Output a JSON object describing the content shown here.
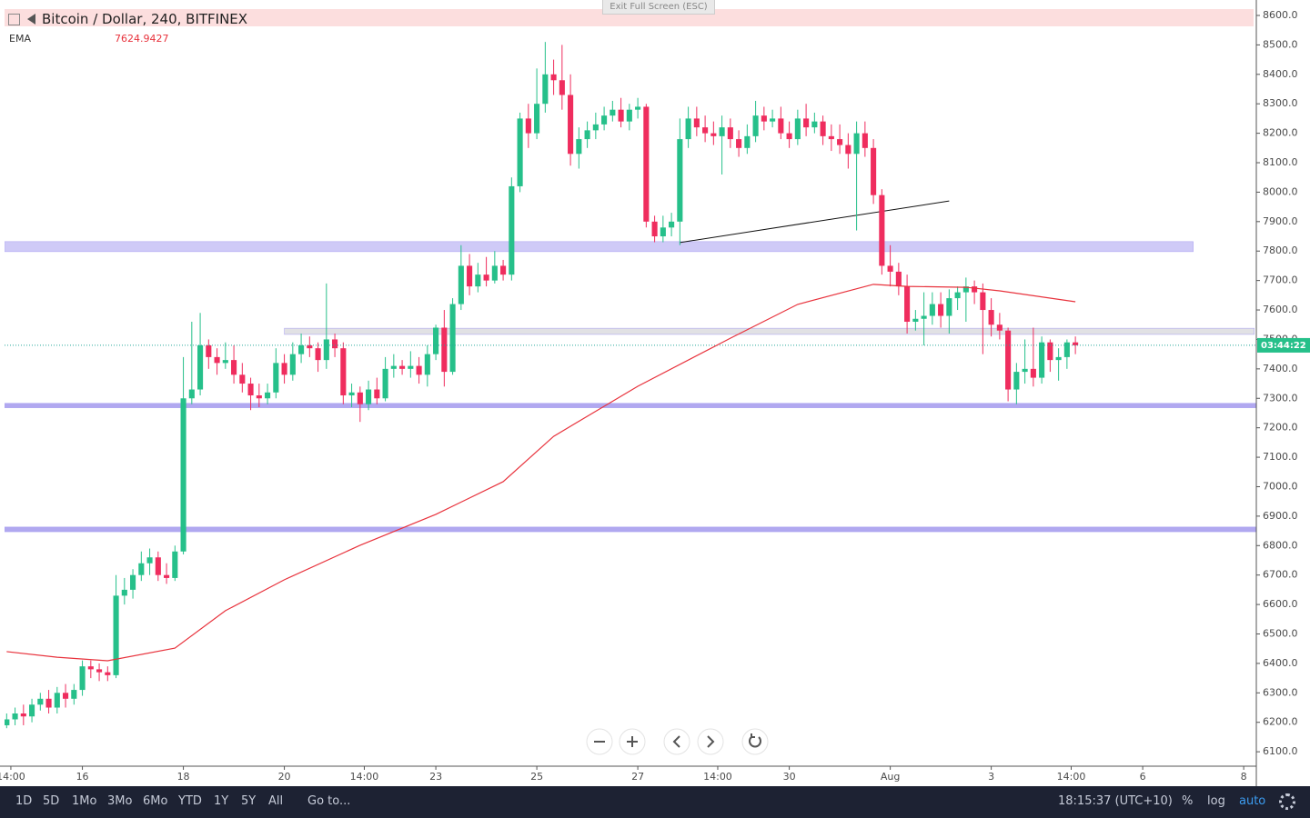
{
  "header": {
    "symbol": "Bitcoin / Dollar, 240, BITFINEX",
    "exit_button": "Exit Full Screen (ESC)"
  },
  "chart_data": {
    "type": "candlestick",
    "xlim": [
      347,
      942
    ],
    "ylim": [
      6051,
      8637
    ],
    "xticks": [
      {
        "value": 350,
        "label": "14:00"
      },
      {
        "value": 384,
        "label": "16"
      },
      {
        "value": 432,
        "label": "18"
      },
      {
        "value": 480,
        "label": "20"
      },
      {
        "value": 518,
        "label": "14:00"
      },
      {
        "value": 552,
        "label": "23"
      },
      {
        "value": 600,
        "label": "25"
      },
      {
        "value": 648,
        "label": "27"
      },
      {
        "value": 686,
        "label": "14:00"
      },
      {
        "value": 720,
        "label": "30"
      },
      {
        "value": 768,
        "label": "Aug"
      },
      {
        "value": 816,
        "label": "3"
      },
      {
        "value": 854,
        "label": "14:00"
      },
      {
        "value": 888,
        "label": "6"
      },
      {
        "value": 936,
        "label": "8"
      }
    ],
    "yticks": [
      {
        "value": 6100,
        "label": "6100.0"
      },
      {
        "value": 6200,
        "label": "6200.0"
      },
      {
        "value": 6300,
        "label": "6300.0"
      },
      {
        "value": 6400,
        "label": "6400.0"
      },
      {
        "value": 6500,
        "label": "6500.0"
      },
      {
        "value": 6600,
        "label": "6600.0"
      },
      {
        "value": 6700,
        "label": "6700.0"
      },
      {
        "value": 6800,
        "label": "6800.0"
      },
      {
        "value": 6900,
        "label": "6900.0"
      },
      {
        "value": 7000,
        "label": "7000.0"
      },
      {
        "value": 7100,
        "label": "7100.0"
      },
      {
        "value": 7200,
        "label": "7200.0"
      },
      {
        "value": 7300,
        "label": "7300.0"
      },
      {
        "value": 7400,
        "label": "7400.0"
      },
      {
        "value": 7500,
        "label": "7500.0"
      },
      {
        "value": 7600,
        "label": "7600.0"
      },
      {
        "value": 7700,
        "label": "7700.0"
      },
      {
        "value": 7800,
        "label": "7800.0"
      },
      {
        "value": 7900,
        "label": "7900.0"
      },
      {
        "value": 8000,
        "label": "8000.0"
      },
      {
        "value": 8100,
        "label": "8100.0"
      },
      {
        "value": 8200,
        "label": "8200.0"
      },
      {
        "value": 8300,
        "label": "8300.0"
      },
      {
        "value": 8400,
        "label": "8400.0"
      },
      {
        "value": 8500,
        "label": "8500.0"
      },
      {
        "value": 8600,
        "label": "8600.0"
      }
    ],
    "countdown": "03:44:22",
    "series": [
      {
        "type": "candlestick",
        "color_up": "#26c08a",
        "color_down": "#ef2d5e",
        "x": [
          348,
          352,
          356,
          360,
          364,
          368,
          372,
          376,
          380,
          384,
          388,
          392,
          396,
          400,
          404,
          408,
          412,
          416,
          420,
          424,
          428,
          432,
          436,
          440,
          444,
          448,
          452,
          456,
          460,
          464,
          468,
          472,
          476,
          480,
          484,
          488,
          492,
          496,
          500,
          504,
          508,
          512,
          516,
          520,
          524,
          528,
          532,
          536,
          540,
          544,
          548,
          552,
          556,
          560,
          564,
          568,
          572,
          576,
          580,
          584,
          588,
          592,
          596,
          600,
          604,
          608,
          612,
          616,
          620,
          624,
          628,
          632,
          636,
          640,
          644,
          648,
          652,
          656,
          660,
          664,
          668,
          672,
          676,
          680,
          684,
          688,
          692,
          696,
          700,
          704,
          708,
          712,
          716,
          720,
          724,
          728,
          732,
          736,
          740,
          744,
          748,
          752,
          756,
          760,
          764,
          768,
          772,
          776,
          780,
          784,
          788,
          792,
          796,
          800,
          804,
          808,
          812,
          816,
          820,
          824,
          828,
          832,
          836,
          840,
          844,
          848,
          852,
          856
        ],
        "open": [
          6190,
          6210,
          6230,
          6220,
          6260,
          6280,
          6250,
          6300,
          6280,
          6310,
          6390,
          6380,
          6370,
          6360,
          6630,
          6650,
          6700,
          6740,
          6760,
          6700,
          6690,
          6780,
          7300,
          7330,
          7480,
          7440,
          7420,
          7430,
          7380,
          7350,
          7310,
          7300,
          7320,
          7420,
          7380,
          7450,
          7480,
          7470,
          7430,
          7500,
          7470,
          7310,
          7320,
          7280,
          7330,
          7300,
          7400,
          7410,
          7400,
          7410,
          7380,
          7450,
          7540,
          7390,
          7620,
          7750,
          7680,
          7720,
          7700,
          7750,
          7720,
          8020,
          8250,
          8200,
          8300,
          8400,
          8380,
          8330,
          8130,
          8180,
          8210,
          8230,
          8260,
          8280,
          8240,
          8280,
          8290,
          7900,
          7850,
          7880,
          7900,
          8180,
          8250,
          8220,
          8200,
          8190,
          8220,
          8180,
          8150,
          8190,
          8260,
          8240,
          8250,
          8200,
          8180,
          8250,
          8220,
          8240,
          8190,
          8180,
          8160,
          8130,
          8200,
          8150,
          7990,
          7750,
          7730,
          7680,
          7560,
          7570,
          7580,
          7620,
          7580,
          7640,
          7660,
          7680,
          7660,
          7600,
          7550,
          7530,
          7330,
          7390,
          7400,
          7370,
          7490,
          7430,
          7440,
          7490
        ],
        "high": [
          6230,
          6250,
          6260,
          6280,
          6300,
          6310,
          6320,
          6330,
          6330,
          6410,
          6410,
          6400,
          6390,
          6700,
          6690,
          6720,
          6780,
          6790,
          6780,
          6740,
          6800,
          7440,
          7560,
          7590,
          7500,
          7470,
          7490,
          7480,
          7420,
          7370,
          7350,
          7350,
          7470,
          7450,
          7490,
          7520,
          7510,
          7490,
          7690,
          7520,
          7490,
          7350,
          7340,
          7360,
          7370,
          7440,
          7450,
          7430,
          7460,
          7440,
          7480,
          7550,
          7600,
          7640,
          7820,
          7790,
          7760,
          7780,
          7800,
          7770,
          8050,
          8270,
          8300,
          8420,
          8510,
          8450,
          8500,
          8400,
          8220,
          8240,
          8270,
          8290,
          8310,
          8320,
          8300,
          8320,
          8300,
          7920,
          7920,
          7930,
          8250,
          8290,
          8290,
          8260,
          8240,
          8260,
          8250,
          8210,
          8230,
          8310,
          8290,
          8280,
          8290,
          8240,
          8280,
          8300,
          8270,
          8260,
          8230,
          8230,
          8200,
          8240,
          8240,
          8180,
          8010,
          7820,
          7760,
          7720,
          7600,
          7660,
          7660,
          7660,
          7670,
          7680,
          7710,
          7700,
          7690,
          7640,
          7590,
          7540,
          7420,
          7500,
          7540,
          7510,
          7500,
          7470,
          7500,
          7510
        ],
        "low": [
          6180,
          6190,
          6190,
          6200,
          6240,
          6230,
          6230,
          6250,
          6260,
          6290,
          6350,
          6340,
          6340,
          6350,
          6600,
          6620,
          6680,
          6700,
          6680,
          6670,
          6680,
          6770,
          7280,
          7310,
          7400,
          7380,
          7400,
          7350,
          7320,
          7260,
          7270,
          7280,
          7300,
          7350,
          7360,
          7420,
          7440,
          7390,
          7400,
          7440,
          7280,
          7270,
          7220,
          7260,
          7280,
          7290,
          7370,
          7380,
          7370,
          7350,
          7340,
          7430,
          7340,
          7380,
          7600,
          7650,
          7660,
          7680,
          7690,
          7700,
          7700,
          8000,
          8150,
          8180,
          8270,
          8330,
          8280,
          8090,
          8080,
          8150,
          8180,
          8210,
          8240,
          8220,
          8210,
          8250,
          7880,
          7830,
          7830,
          7850,
          7820,
          8150,
          8190,
          8170,
          8160,
          8060,
          8150,
          8120,
          8130,
          8170,
          8210,
          8220,
          8180,
          8150,
          8160,
          8190,
          8200,
          8160,
          8140,
          8130,
          8080,
          7870,
          8120,
          7960,
          7720,
          7680,
          7650,
          7520,
          7530,
          7480,
          7550,
          7540,
          7520,
          7600,
          7560,
          7620,
          7450,
          7510,
          7500,
          7290,
          7280,
          7350,
          7340,
          7350,
          7390,
          7360,
          7400,
          7450
        ],
        "close": [
          6210,
          6230,
          6220,
          6260,
          6280,
          6250,
          6300,
          6280,
          6310,
          6390,
          6380,
          6370,
          6360,
          6630,
          6650,
          6700,
          6740,
          6760,
          6700,
          6690,
          6780,
          7300,
          7330,
          7480,
          7440,
          7420,
          7430,
          7380,
          7350,
          7310,
          7300,
          7320,
          7420,
          7380,
          7450,
          7480,
          7470,
          7430,
          7500,
          7470,
          7310,
          7320,
          7280,
          7330,
          7300,
          7400,
          7410,
          7400,
          7410,
          7380,
          7450,
          7540,
          7390,
          7620,
          7750,
          7680,
          7720,
          7700,
          7750,
          7720,
          8020,
          8250,
          8200,
          8300,
          8400,
          8380,
          8330,
          8130,
          8180,
          8210,
          8230,
          8260,
          8280,
          8240,
          8280,
          8290,
          7900,
          7850,
          7880,
          7900,
          8180,
          8250,
          8220,
          8200,
          8190,
          8220,
          8180,
          8150,
          8190,
          8260,
          8240,
          8250,
          8200,
          8180,
          8250,
          8220,
          8240,
          8190,
          8180,
          8160,
          8130,
          8200,
          8150,
          7990,
          7750,
          7730,
          7680,
          7560,
          7570,
          7580,
          7620,
          7580,
          7640,
          7660,
          7680,
          7660,
          7600,
          7550,
          7530,
          7330,
          7390,
          7400,
          7370,
          7490,
          7430,
          7440,
          7490,
          7480
        ]
      },
      {
        "type": "line",
        "name": "EMA",
        "legend_value": 7624.9427,
        "color": "#e8323c",
        "x": [
          348,
          372,
          396,
          428,
          452,
          480,
          516,
          552,
          584,
          608,
          648,
          692,
          724,
          760,
          776,
          804,
          820,
          856
        ],
        "values": [
          6440,
          6421,
          6409,
          6452,
          6579,
          6684,
          6801,
          6906,
          7017,
          7171,
          7341,
          7504,
          7619,
          7687,
          7680,
          7677,
          7665,
          7628
        ]
      }
    ],
    "bands": [
      {
        "from": 7798,
        "to": 7832,
        "x": [
          347,
          912
        ],
        "color": "#cfcaf7"
      },
      {
        "from": 7517,
        "to": 7538,
        "x": [
          480,
          941
        ],
        "color": "#e1e1e4"
      },
      {
        "from": 7268,
        "to": 7283,
        "x": [
          347,
          942
        ],
        "color": "#b1a8f0"
      },
      {
        "from": 6847,
        "to": 6863,
        "x": [
          347,
          942
        ],
        "color": "#b1a8f0"
      }
    ],
    "trend_line": {
      "x": [
        668,
        796
      ],
      "values": [
        7829,
        7970
      ]
    }
  },
  "toolbar": {
    "ranges": [
      "1D",
      "5D",
      "1Mo",
      "3Mo",
      "6Mo",
      "YTD",
      "1Y",
      "5Y",
      "All"
    ],
    "goto": "Go to...",
    "clock": "18:15:37 (UTC+10)",
    "options": [
      "%",
      "log",
      "auto"
    ]
  }
}
